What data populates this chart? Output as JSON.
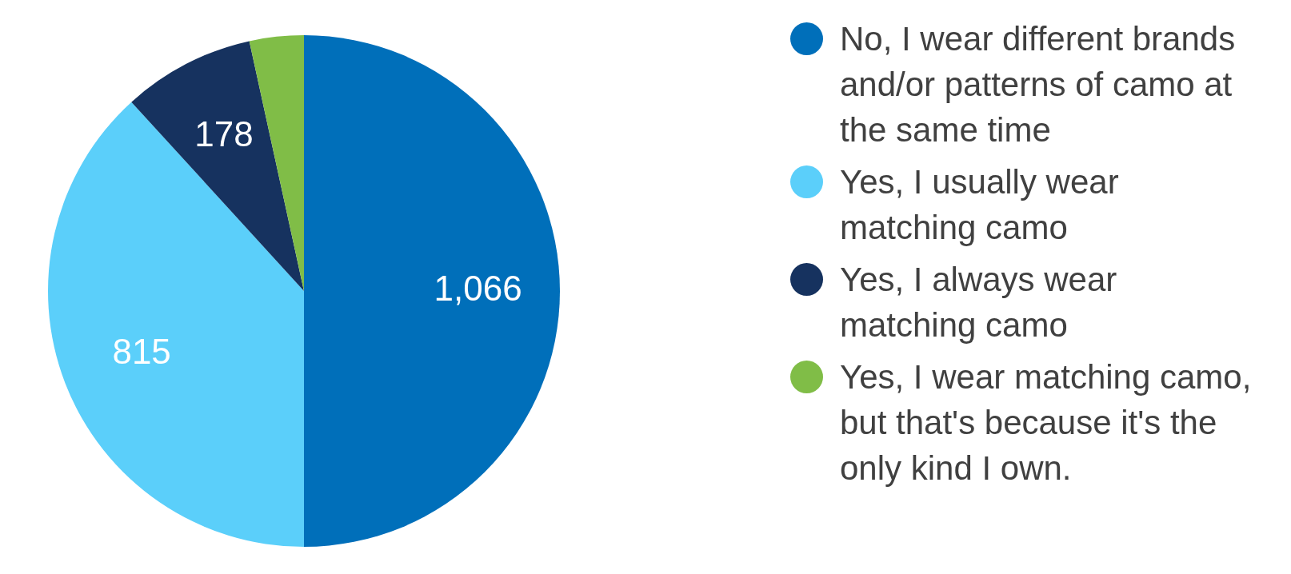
{
  "chart_data": {
    "type": "pie",
    "categories": [
      "No, I wear different brands and/or patterns of camo at the same time",
      "Yes, I usually wear matching camo",
      "Yes, I always wear matching camo",
      "Yes, I wear matching camo, but that's because it's the only kind I own."
    ],
    "values": [
      1066,
      815,
      178,
      73
    ],
    "value_labels": [
      "1,066",
      "815",
      "178",
      null
    ],
    "colors": [
      "#006fba",
      "#5bcffa",
      "#16325f",
      "#80bd47"
    ],
    "legend": "right"
  }
}
